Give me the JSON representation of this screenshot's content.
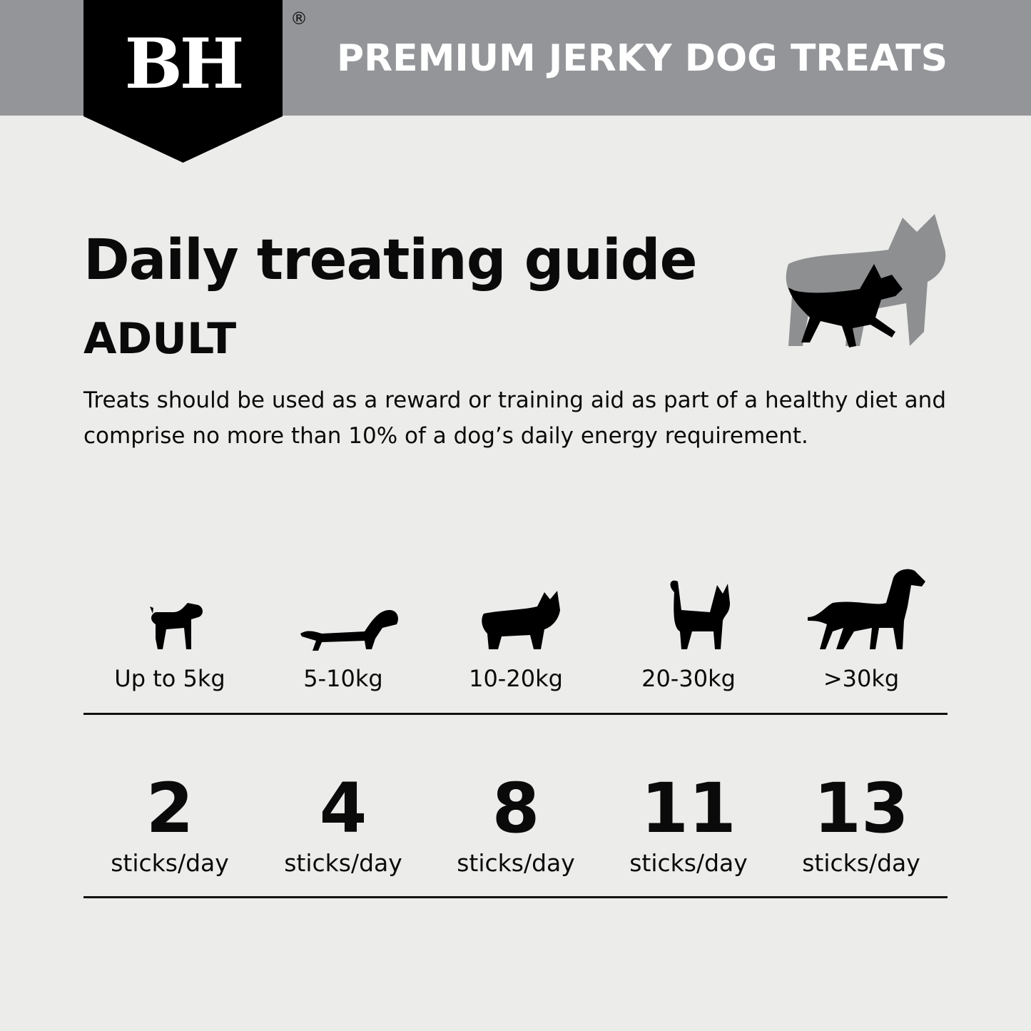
{
  "header": {
    "brand_logo": "BH",
    "registered_mark": "®",
    "title": "PREMIUM JERKY DOG TREATS",
    "bar_color": "#939598"
  },
  "main": {
    "title": "Daily treating guide",
    "subtitle": "ADULT",
    "description": "Treats should be used as a reward or training aid as part of a healthy diet and comprise no more than 10% of a dog’s daily energy requirement.",
    "hero_icon": "small-and-large-dog-silhouette-icon"
  },
  "guide": [
    {
      "weight": "Up to 5kg",
      "count": "2",
      "unit": "sticks/day",
      "icon": "beagle-silhouette-icon"
    },
    {
      "weight": "5-10kg",
      "count": "4",
      "unit": "sticks/day",
      "icon": "dachshund-silhouette-icon"
    },
    {
      "weight": "10-20kg",
      "count": "8",
      "unit": "sticks/day",
      "icon": "bulldog-silhouette-icon"
    },
    {
      "weight": "20-30kg",
      "count": "11",
      "unit": "sticks/day",
      "icon": "terrier-silhouette-icon"
    },
    {
      "weight": ">30kg",
      "count": "13",
      "unit": "sticks/day",
      "icon": "great-dane-silhouette-icon"
    }
  ]
}
